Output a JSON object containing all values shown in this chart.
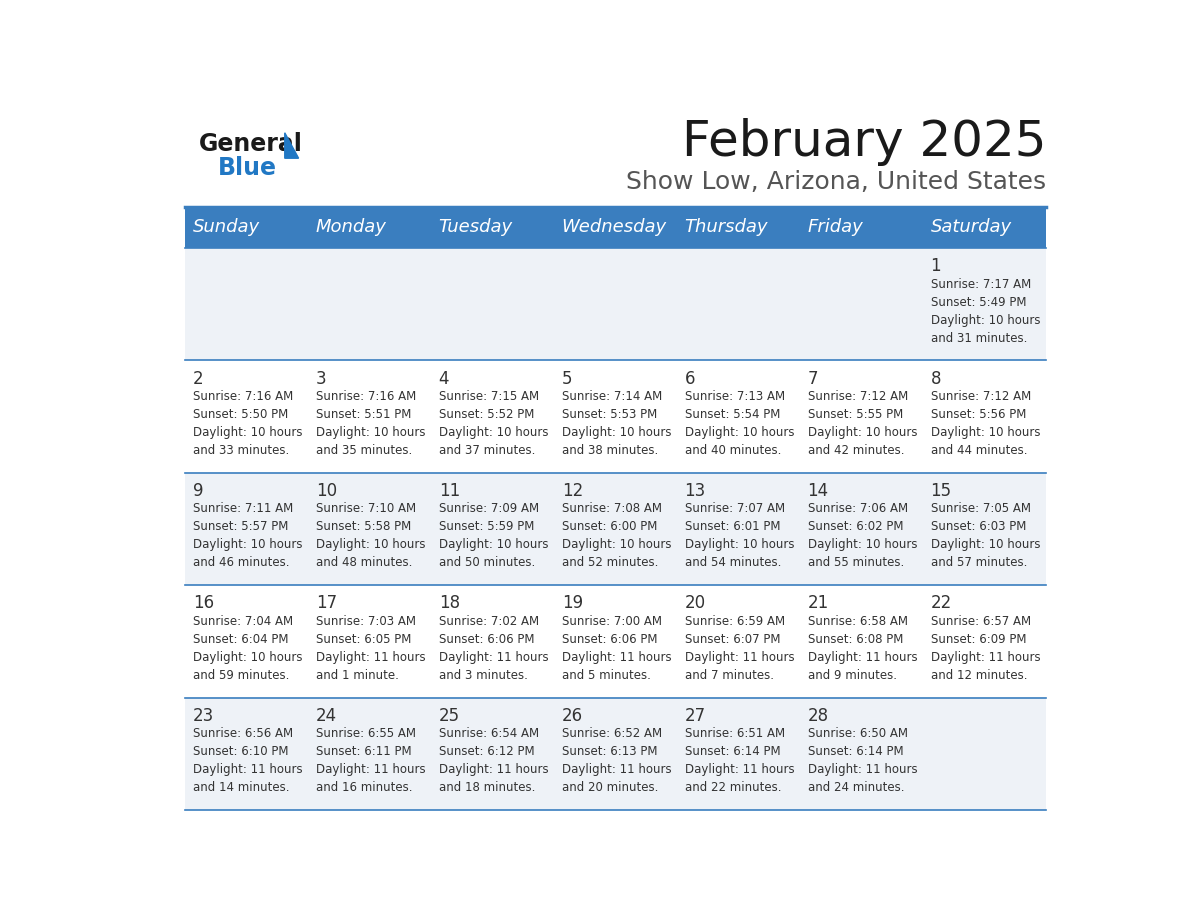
{
  "title": "February 2025",
  "subtitle": "Show Low, Arizona, United States",
  "header_bg": "#3a7ebf",
  "header_text_color": "#ffffff",
  "cell_bg_odd": "#eef2f7",
  "cell_bg_even": "#ffffff",
  "days_of_week": [
    "Sunday",
    "Monday",
    "Tuesday",
    "Wednesday",
    "Thursday",
    "Friday",
    "Saturday"
  ],
  "calendar_data": [
    [
      null,
      null,
      null,
      null,
      null,
      null,
      {
        "day": 1,
        "sunrise": "7:17 AM",
        "sunset": "5:49 PM",
        "daylight": "10 hours\nand 31 minutes."
      }
    ],
    [
      {
        "day": 2,
        "sunrise": "7:16 AM",
        "sunset": "5:50 PM",
        "daylight": "10 hours\nand 33 minutes."
      },
      {
        "day": 3,
        "sunrise": "7:16 AM",
        "sunset": "5:51 PM",
        "daylight": "10 hours\nand 35 minutes."
      },
      {
        "day": 4,
        "sunrise": "7:15 AM",
        "sunset": "5:52 PM",
        "daylight": "10 hours\nand 37 minutes."
      },
      {
        "day": 5,
        "sunrise": "7:14 AM",
        "sunset": "5:53 PM",
        "daylight": "10 hours\nand 38 minutes."
      },
      {
        "day": 6,
        "sunrise": "7:13 AM",
        "sunset": "5:54 PM",
        "daylight": "10 hours\nand 40 minutes."
      },
      {
        "day": 7,
        "sunrise": "7:12 AM",
        "sunset": "5:55 PM",
        "daylight": "10 hours\nand 42 minutes."
      },
      {
        "day": 8,
        "sunrise": "7:12 AM",
        "sunset": "5:56 PM",
        "daylight": "10 hours\nand 44 minutes."
      }
    ],
    [
      {
        "day": 9,
        "sunrise": "7:11 AM",
        "sunset": "5:57 PM",
        "daylight": "10 hours\nand 46 minutes."
      },
      {
        "day": 10,
        "sunrise": "7:10 AM",
        "sunset": "5:58 PM",
        "daylight": "10 hours\nand 48 minutes."
      },
      {
        "day": 11,
        "sunrise": "7:09 AM",
        "sunset": "5:59 PM",
        "daylight": "10 hours\nand 50 minutes."
      },
      {
        "day": 12,
        "sunrise": "7:08 AM",
        "sunset": "6:00 PM",
        "daylight": "10 hours\nand 52 minutes."
      },
      {
        "day": 13,
        "sunrise": "7:07 AM",
        "sunset": "6:01 PM",
        "daylight": "10 hours\nand 54 minutes."
      },
      {
        "day": 14,
        "sunrise": "7:06 AM",
        "sunset": "6:02 PM",
        "daylight": "10 hours\nand 55 minutes."
      },
      {
        "day": 15,
        "sunrise": "7:05 AM",
        "sunset": "6:03 PM",
        "daylight": "10 hours\nand 57 minutes."
      }
    ],
    [
      {
        "day": 16,
        "sunrise": "7:04 AM",
        "sunset": "6:04 PM",
        "daylight": "10 hours\nand 59 minutes."
      },
      {
        "day": 17,
        "sunrise": "7:03 AM",
        "sunset": "6:05 PM",
        "daylight": "11 hours\nand 1 minute."
      },
      {
        "day": 18,
        "sunrise": "7:02 AM",
        "sunset": "6:06 PM",
        "daylight": "11 hours\nand 3 minutes."
      },
      {
        "day": 19,
        "sunrise": "7:00 AM",
        "sunset": "6:06 PM",
        "daylight": "11 hours\nand 5 minutes."
      },
      {
        "day": 20,
        "sunrise": "6:59 AM",
        "sunset": "6:07 PM",
        "daylight": "11 hours\nand 7 minutes."
      },
      {
        "day": 21,
        "sunrise": "6:58 AM",
        "sunset": "6:08 PM",
        "daylight": "11 hours\nand 9 minutes."
      },
      {
        "day": 22,
        "sunrise": "6:57 AM",
        "sunset": "6:09 PM",
        "daylight": "11 hours\nand 12 minutes."
      }
    ],
    [
      {
        "day": 23,
        "sunrise": "6:56 AM",
        "sunset": "6:10 PM",
        "daylight": "11 hours\nand 14 minutes."
      },
      {
        "day": 24,
        "sunrise": "6:55 AM",
        "sunset": "6:11 PM",
        "daylight": "11 hours\nand 16 minutes."
      },
      {
        "day": 25,
        "sunrise": "6:54 AM",
        "sunset": "6:12 PM",
        "daylight": "11 hours\nand 18 minutes."
      },
      {
        "day": 26,
        "sunrise": "6:52 AM",
        "sunset": "6:13 PM",
        "daylight": "11 hours\nand 20 minutes."
      },
      {
        "day": 27,
        "sunrise": "6:51 AM",
        "sunset": "6:14 PM",
        "daylight": "11 hours\nand 22 minutes."
      },
      {
        "day": 28,
        "sunrise": "6:50 AM",
        "sunset": "6:14 PM",
        "daylight": "11 hours\nand 24 minutes."
      },
      null
    ]
  ],
  "logo_text_general": "General",
  "logo_text_blue": "Blue",
  "title_fontsize": 36,
  "subtitle_fontsize": 18,
  "header_fontsize": 13,
  "day_number_fontsize": 12,
  "cell_text_fontsize": 8.5,
  "divider_color": "#3a7ebf",
  "text_color": "#333333"
}
